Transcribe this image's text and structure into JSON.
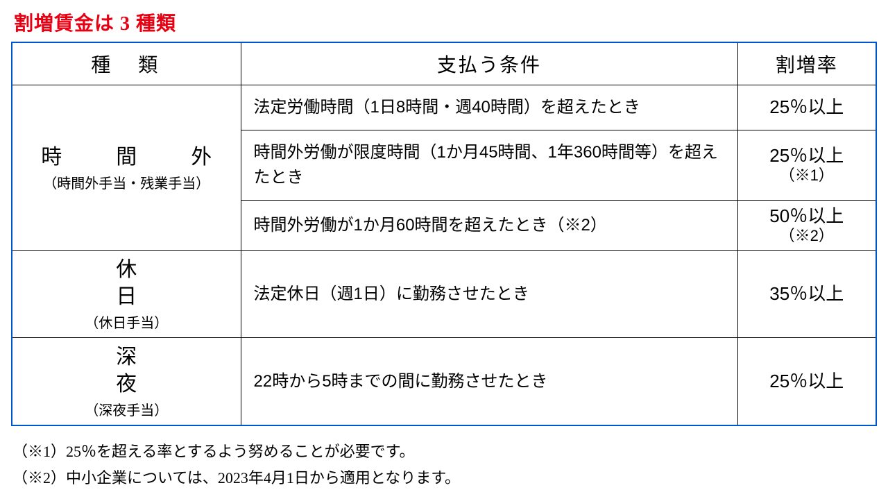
{
  "title": "割増賃金は 3 種類",
  "headers": {
    "type": "種　類",
    "condition": "支払う条件",
    "rate": "割増率"
  },
  "rows": {
    "overtime": {
      "type_main": "時　間　外",
      "type_sub": "（時間外手当・残業手当）",
      "r1": {
        "condition": "法定労働時間（1日8時間・週40時間）を超えたとき",
        "rate": "25％以上"
      },
      "r2": {
        "condition": "時間外労働が限度時間（1か月45時間、1年360時間等）を超えたとき",
        "rate": "25％以上",
        "rate_note": "（※1）"
      },
      "r3": {
        "condition": "時間外労働が1か月60時間を超えたとき（※2）",
        "rate": "50％以上",
        "rate_note": "（※2）"
      }
    },
    "holiday": {
      "type_main": "休日",
      "type_sub": "（休日手当）",
      "condition": "法定休日（週1日）に勤務させたとき",
      "rate": "35％以上"
    },
    "night": {
      "type_main": "深夜",
      "type_sub": "（深夜手当）",
      "condition": "22時から5時までの間に勤務させたとき",
      "rate": "25％以上"
    }
  },
  "footnotes": {
    "n1": "（※1）25％を超える率とするよう努めることが必要です。",
    "n2": "（※2）中小企業については、2023年4月1日から適用となります。"
  },
  "colors": {
    "title": "#e60012",
    "table_border": "#0055cc",
    "cell_border": "#000000",
    "text": "#000000",
    "background": "#ffffff"
  }
}
